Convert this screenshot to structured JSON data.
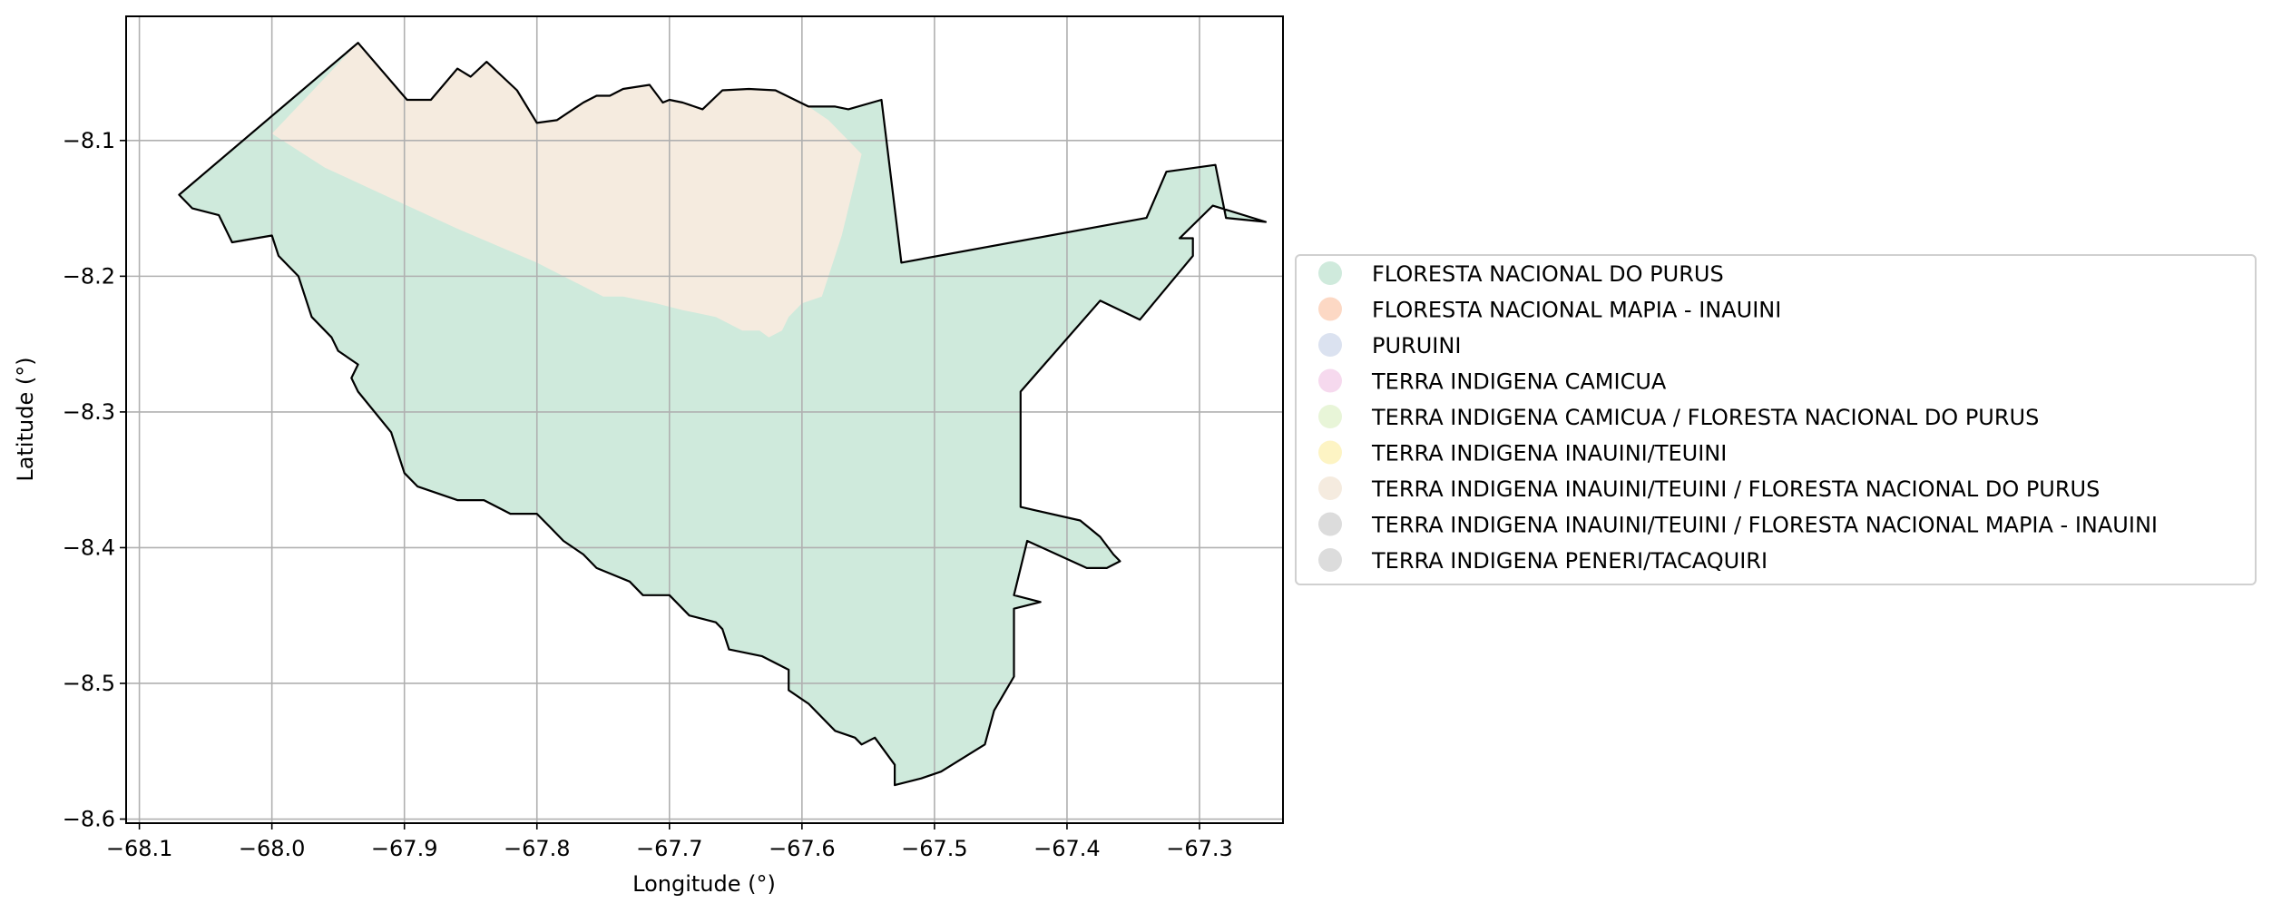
{
  "map": {
    "xlabel": "Longitude (°)",
    "ylabel": "Latitude (°)",
    "xlim": [
      -68.11,
      -67.237
    ],
    "ylim": [
      -8.603,
      -8.0085
    ],
    "x_ticks": [
      -68.1,
      -68.0,
      -67.9,
      -67.8,
      -67.7,
      -67.6,
      -67.5,
      -67.4,
      -67.3
    ],
    "x_tick_labels": [
      "−68.1",
      "−68.0",
      "−67.9",
      "−67.8",
      "−67.7",
      "−67.6",
      "−67.5",
      "−67.4",
      "−67.3"
    ],
    "y_ticks": [
      -8.1,
      -8.2,
      -8.3,
      -8.4,
      -8.5,
      -8.6
    ],
    "y_tick_labels": [
      "−8.1",
      "−8.2",
      "−8.3",
      "−8.4",
      "−8.5",
      "−8.6"
    ],
    "grid": true,
    "legend_position": "right",
    "legend": [
      {
        "label": "FLORESTA NACIONAL DO PURUS",
        "color": "#cfeadc"
      },
      {
        "label": "FLORESTA NACIONAL MAPIA - INAUINI",
        "color": "#fcd8c4"
      },
      {
        "label": "PURUINI",
        "color": "#dbe2f0"
      },
      {
        "label": "TERRA INDIGENA CAMICUA",
        "color": "#f6d9ee"
      },
      {
        "label": "TERRA INDIGENA CAMICUA / FLORESTA NACIONAL DO PURUS",
        "color": "#e8f5d8"
      },
      {
        "label": "TERRA INDIGENA INAUINI/TEUINI",
        "color": "#fdf4c4"
      },
      {
        "label": "TERRA INDIGENA INAUINI/TEUINI / FLORESTA NACIONAL DO PURUS",
        "color": "#f5ebdf"
      },
      {
        "label": "TERRA INDIGENA INAUINI/TEUINI / FLORESTA NACIONAL MAPIA - INAUINI",
        "color": "#dcdcdc"
      },
      {
        "label": "TERRA INDIGENA PENERI/TACAQUIRI",
        "color": "#dcdcdc"
      }
    ],
    "boundary": [
      [
        -68.07,
        -8.14
      ],
      [
        -67.935,
        -8.028
      ],
      [
        -67.898,
        -8.07
      ],
      [
        -67.88,
        -8.07
      ],
      [
        -67.86,
        -8.047
      ],
      [
        -67.85,
        -8.053
      ],
      [
        -67.838,
        -8.042
      ],
      [
        -67.815,
        -8.063
      ],
      [
        -67.8,
        -8.087
      ],
      [
        -67.785,
        -8.085
      ],
      [
        -67.765,
        -8.072
      ],
      [
        -67.755,
        -8.067
      ],
      [
        -67.745,
        -8.067
      ],
      [
        -67.735,
        -8.062
      ],
      [
        -67.715,
        -8.059
      ],
      [
        -67.705,
        -8.072
      ],
      [
        -67.7,
        -8.07
      ],
      [
        -67.69,
        -8.072
      ],
      [
        -67.675,
        -8.077
      ],
      [
        -67.66,
        -8.063
      ],
      [
        -67.64,
        -8.062
      ],
      [
        -67.62,
        -8.063
      ],
      [
        -67.595,
        -8.075
      ],
      [
        -67.575,
        -8.075
      ],
      [
        -67.565,
        -8.077
      ],
      [
        -67.54,
        -8.07
      ],
      [
        -67.525,
        -8.19
      ],
      [
        -67.34,
        -8.157
      ],
      [
        -67.325,
        -8.123
      ],
      [
        -67.288,
        -8.118
      ],
      [
        -67.28,
        -8.157
      ],
      [
        -67.25,
        -8.16
      ],
      [
        -67.29,
        -8.148
      ],
      [
        -67.315,
        -8.172
      ],
      [
        -67.305,
        -8.172
      ],
      [
        -67.305,
        -8.185
      ],
      [
        -67.345,
        -8.232
      ],
      [
        -67.375,
        -8.218
      ],
      [
        -67.435,
        -8.285
      ],
      [
        -67.435,
        -8.37
      ],
      [
        -67.39,
        -8.38
      ],
      [
        -67.375,
        -8.392
      ],
      [
        -67.365,
        -8.405
      ],
      [
        -67.36,
        -8.41
      ],
      [
        -67.37,
        -8.415
      ],
      [
        -67.385,
        -8.415
      ],
      [
        -67.43,
        -8.395
      ],
      [
        -67.44,
        -8.435
      ],
      [
        -67.42,
        -8.44
      ],
      [
        -67.44,
        -8.445
      ],
      [
        -67.44,
        -8.495
      ],
      [
        -67.455,
        -8.52
      ],
      [
        -67.462,
        -8.545
      ],
      [
        -67.495,
        -8.565
      ],
      [
        -67.51,
        -8.57
      ],
      [
        -67.53,
        -8.575
      ],
      [
        -67.53,
        -8.56
      ],
      [
        -67.545,
        -8.54
      ],
      [
        -67.555,
        -8.545
      ],
      [
        -67.56,
        -8.54
      ],
      [
        -67.575,
        -8.535
      ],
      [
        -67.595,
        -8.515
      ],
      [
        -67.61,
        -8.505
      ],
      [
        -67.61,
        -8.49
      ],
      [
        -67.63,
        -8.48
      ],
      [
        -67.655,
        -8.475
      ],
      [
        -67.66,
        -8.46
      ],
      [
        -67.665,
        -8.455
      ],
      [
        -67.685,
        -8.45
      ],
      [
        -67.7,
        -8.435
      ],
      [
        -67.72,
        -8.435
      ],
      [
        -67.73,
        -8.425
      ],
      [
        -67.755,
        -8.415
      ],
      [
        -67.765,
        -8.405
      ],
      [
        -67.78,
        -8.395
      ],
      [
        -67.79,
        -8.385
      ],
      [
        -67.8,
        -8.375
      ],
      [
        -67.82,
        -8.375
      ],
      [
        -67.84,
        -8.365
      ],
      [
        -67.86,
        -8.365
      ],
      [
        -67.875,
        -8.36
      ],
      [
        -67.89,
        -8.355
      ],
      [
        -67.9,
        -8.345
      ],
      [
        -67.905,
        -8.33
      ],
      [
        -67.91,
        -8.315
      ],
      [
        -67.935,
        -8.285
      ],
      [
        -67.94,
        -8.275
      ],
      [
        -67.935,
        -8.265
      ],
      [
        -67.95,
        -8.255
      ],
      [
        -67.955,
        -8.245
      ],
      [
        -67.965,
        -8.235
      ],
      [
        -67.97,
        -8.23
      ],
      [
        -67.975,
        -8.215
      ],
      [
        -67.98,
        -8.2
      ],
      [
        -67.995,
        -8.185
      ],
      [
        -68.0,
        -8.17
      ],
      [
        -68.03,
        -8.175
      ],
      [
        -68.04,
        -8.155
      ],
      [
        -68.06,
        -8.15
      ]
    ],
    "inauini_overlap": [
      [
        -68.0,
        -8.095
      ],
      [
        -67.935,
        -8.028
      ],
      [
        -67.898,
        -8.07
      ],
      [
        -67.88,
        -8.07
      ],
      [
        -67.86,
        -8.047
      ],
      [
        -67.85,
        -8.053
      ],
      [
        -67.838,
        -8.042
      ],
      [
        -67.815,
        -8.063
      ],
      [
        -67.8,
        -8.087
      ],
      [
        -67.785,
        -8.085
      ],
      [
        -67.765,
        -8.072
      ],
      [
        -67.755,
        -8.067
      ],
      [
        -67.745,
        -8.067
      ],
      [
        -67.735,
        -8.062
      ],
      [
        -67.715,
        -8.059
      ],
      [
        -67.705,
        -8.072
      ],
      [
        -67.7,
        -8.07
      ],
      [
        -67.69,
        -8.072
      ],
      [
        -67.675,
        -8.077
      ],
      [
        -67.66,
        -8.063
      ],
      [
        -67.64,
        -8.062
      ],
      [
        -67.62,
        -8.063
      ],
      [
        -67.595,
        -8.075
      ],
      [
        -67.58,
        -8.085
      ],
      [
        -67.555,
        -8.11
      ],
      [
        -67.57,
        -8.17
      ],
      [
        -67.585,
        -8.215
      ],
      [
        -67.6,
        -8.22
      ],
      [
        -67.61,
        -8.23
      ],
      [
        -67.615,
        -8.24
      ],
      [
        -67.625,
        -8.245
      ],
      [
        -67.632,
        -8.24
      ],
      [
        -67.645,
        -8.24
      ],
      [
        -67.665,
        -8.23
      ],
      [
        -67.69,
        -8.225
      ],
      [
        -67.71,
        -8.22
      ],
      [
        -67.735,
        -8.215
      ],
      [
        -67.75,
        -8.215
      ],
      [
        -67.8,
        -8.19
      ],
      [
        -67.86,
        -8.165
      ],
      [
        -67.92,
        -8.138
      ],
      [
        -67.96,
        -8.12
      ]
    ]
  }
}
